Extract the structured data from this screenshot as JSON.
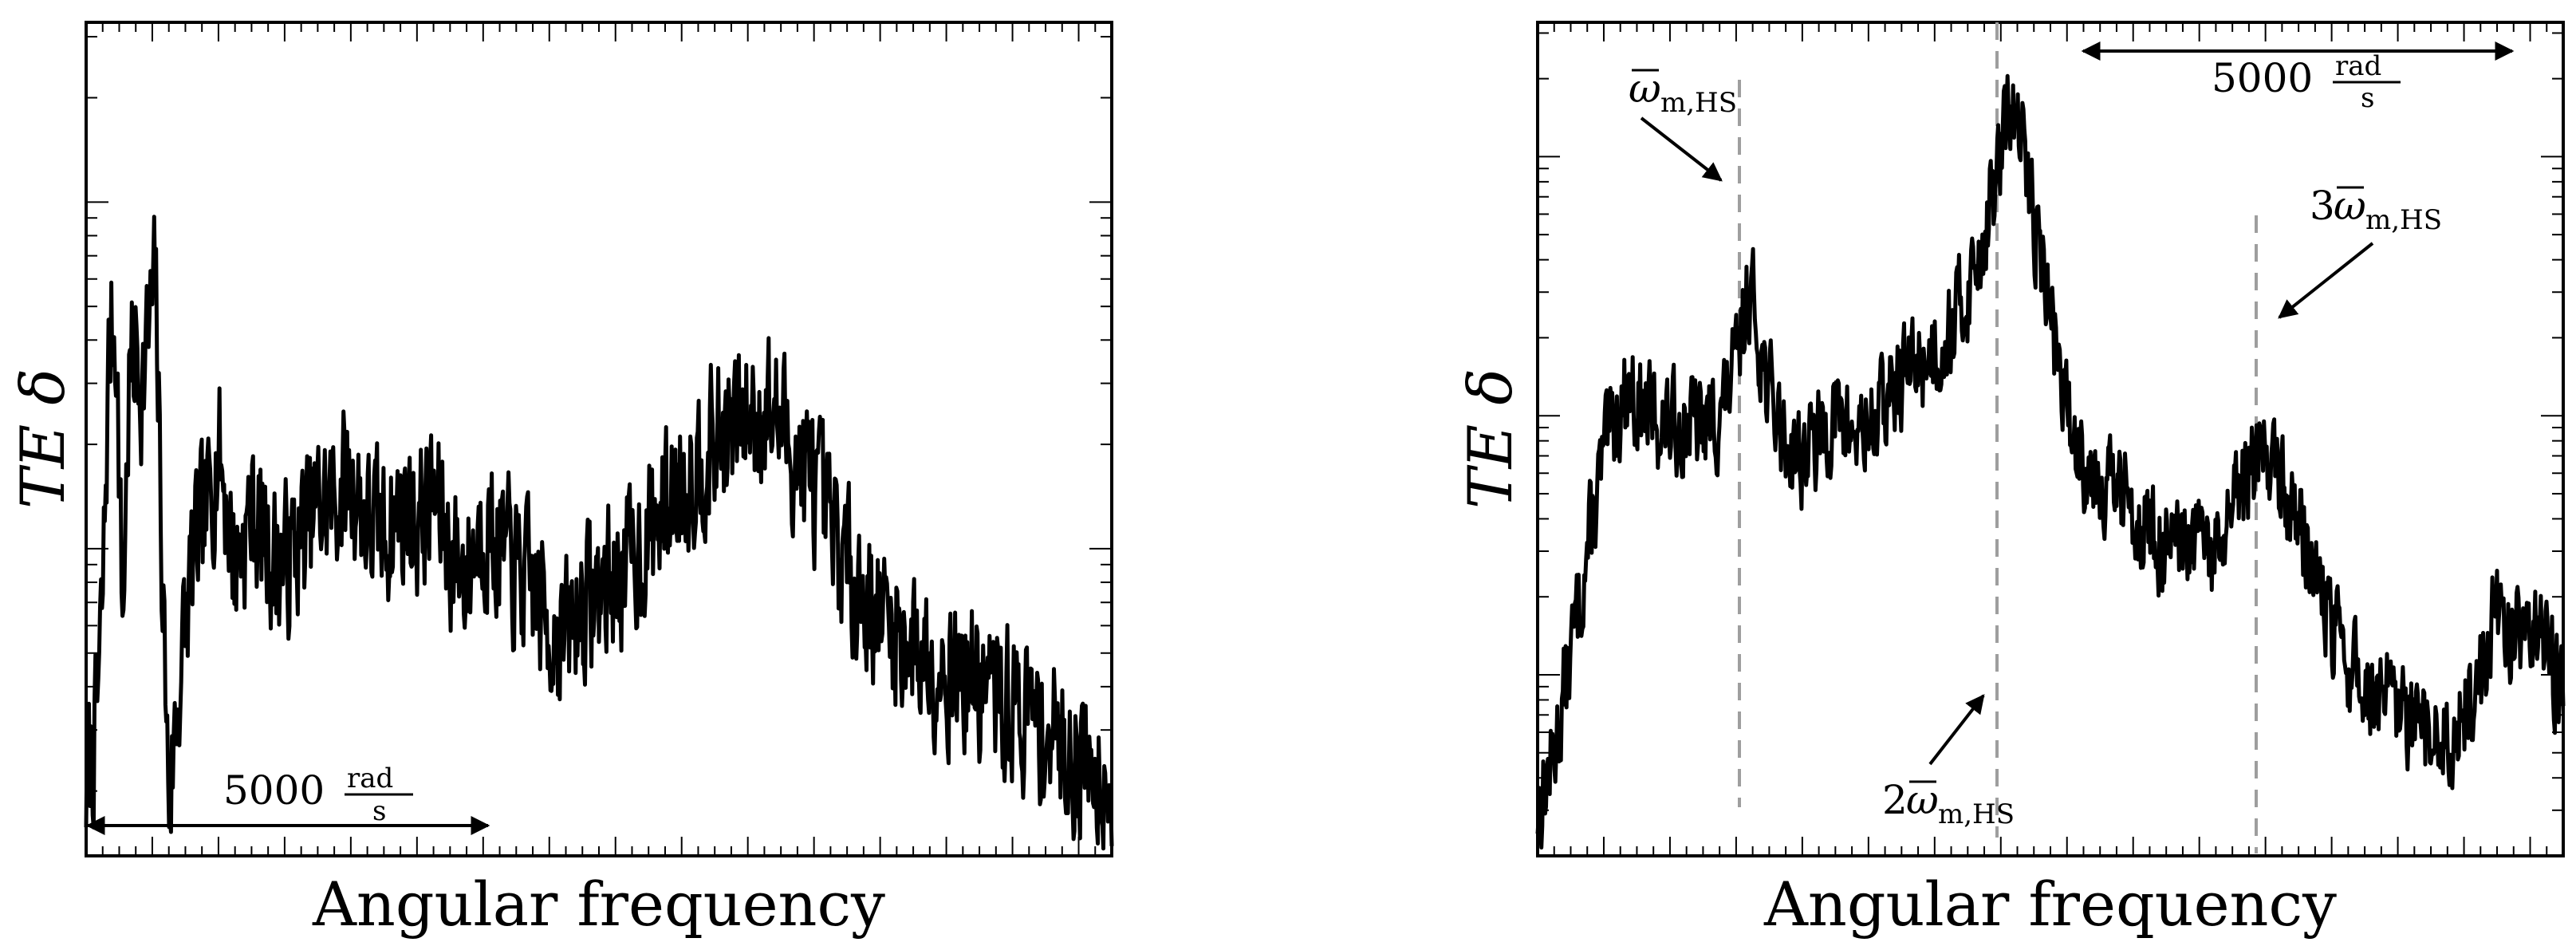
{
  "chart_data": [
    {
      "type": "line",
      "xlabel": "Angular frequency",
      "ylabel": "TE δ",
      "yscale": "log",
      "grid": false,
      "legend": "none",
      "xlim": [
        0,
        31000
      ],
      "ylim": [
        0.013,
        3.3
      ],
      "scale_bar": {
        "value": "5000",
        "unit_num": "rad",
        "unit_den": "s",
        "from": 0,
        "to": 12000,
        "position": "bottom-left"
      },
      "series": [
        {
          "color": "#000000",
          "points": [
            [
              0,
              0.02
            ],
            [
              300,
              0.03
            ],
            [
              500,
              0.07
            ],
            [
              700,
              0.4
            ],
            [
              900,
              0.46
            ],
            [
              1100,
              0.06
            ],
            [
              1300,
              0.3
            ],
            [
              1500,
              0.38
            ],
            [
              1700,
              0.3
            ],
            [
              1900,
              0.42
            ],
            [
              2100,
              0.58
            ],
            [
              2300,
              0.09
            ],
            [
              2500,
              0.018
            ],
            [
              2800,
              0.04
            ],
            [
              3200,
              0.09
            ],
            [
              3600,
              0.12
            ],
            [
              4000,
              0.2
            ],
            [
              4500,
              0.09
            ],
            [
              5000,
              0.13
            ],
            [
              5500,
              0.1
            ],
            [
              6000,
              0.09
            ],
            [
              6500,
              0.11
            ],
            [
              7000,
              0.13
            ],
            [
              7500,
              0.14
            ],
            [
              8000,
              0.16
            ],
            [
              8500,
              0.12
            ],
            [
              9000,
              0.11
            ],
            [
              9500,
              0.13
            ],
            [
              10000,
              0.12
            ],
            [
              10500,
              0.14
            ],
            [
              11000,
              0.1
            ],
            [
              11500,
              0.085
            ],
            [
              12000,
              0.12
            ],
            [
              12500,
              0.1
            ],
            [
              13000,
              0.085
            ],
            [
              13500,
              0.075
            ],
            [
              14000,
              0.06
            ],
            [
              14500,
              0.055
            ],
            [
              15000,
              0.07
            ],
            [
              15500,
              0.075
            ],
            [
              16000,
              0.085
            ],
            [
              16500,
              0.09
            ],
            [
              17000,
              0.11
            ],
            [
              17500,
              0.13
            ],
            [
              18000,
              0.16
            ],
            [
              18500,
              0.18
            ],
            [
              19000,
              0.2
            ],
            [
              19500,
              0.22
            ],
            [
              20000,
              0.24
            ],
            [
              20500,
              0.26
            ],
            [
              21000,
              0.23
            ],
            [
              21500,
              0.18
            ],
            [
              22000,
              0.15
            ],
            [
              22500,
              0.11
            ],
            [
              23000,
              0.09
            ],
            [
              23500,
              0.075
            ],
            [
              24000,
              0.065
            ],
            [
              24500,
              0.058
            ],
            [
              25000,
              0.052
            ],
            [
              25500,
              0.05
            ],
            [
              26000,
              0.046
            ],
            [
              26500,
              0.043
            ],
            [
              27000,
              0.04
            ],
            [
              27500,
              0.037
            ],
            [
              28000,
              0.035
            ],
            [
              28500,
              0.033
            ],
            [
              29000,
              0.03
            ],
            [
              29500,
              0.027
            ],
            [
              30000,
              0.025
            ],
            [
              30500,
              0.024
            ],
            [
              31000,
              0.022
            ]
          ],
          "noise": 0.4
        }
      ]
    },
    {
      "type": "line",
      "xlabel": "Angular frequency",
      "ylabel": "TE δ",
      "yscale": "log",
      "grid": false,
      "legend": "none",
      "xlim": [
        0,
        31000
      ],
      "ylim": [
        0.002,
        3.3
      ],
      "scale_bar": {
        "value": "5000",
        "unit_num": "rad",
        "unit_den": "s",
        "from": 17600,
        "to": 31000,
        "position": "top-right"
      },
      "reference_lines": [
        {
          "x": 6400,
          "label_main": "ω",
          "label_sub": "m,HS",
          "label_prefix": "",
          "overline": true
        },
        {
          "x": 14300,
          "label_main": "ω",
          "label_sub": "m,HS",
          "label_prefix": "2",
          "overline": true
        },
        {
          "x": 22300,
          "label_main": "ω",
          "label_sub": "m,HS",
          "label_prefix": "3",
          "overline": true
        }
      ],
      "series": [
        {
          "color": "#000000",
          "points": [
            [
              0,
              0.003
            ],
            [
              500,
              0.005
            ],
            [
              1000,
              0.012
            ],
            [
              1500,
              0.03
            ],
            [
              2000,
              0.07
            ],
            [
              2500,
              0.11
            ],
            [
              2800,
              0.13
            ],
            [
              3000,
              0.11
            ],
            [
              3500,
              0.1
            ],
            [
              4000,
              0.09
            ],
            [
              4500,
              0.095
            ],
            [
              5000,
              0.09
            ],
            [
              5500,
              0.1
            ],
            [
              6000,
              0.15
            ],
            [
              6400,
              0.32
            ],
            [
              6700,
              0.2
            ],
            [
              7000,
              0.12
            ],
            [
              7500,
              0.08
            ],
            [
              8000,
              0.07
            ],
            [
              8500,
              0.08
            ],
            [
              9000,
              0.1
            ],
            [
              9500,
              0.085
            ],
            [
              10000,
              0.09
            ],
            [
              10500,
              0.11
            ],
            [
              11000,
              0.14
            ],
            [
              11500,
              0.16
            ],
            [
              12000,
              0.18
            ],
            [
              12500,
              0.22
            ],
            [
              13000,
              0.3
            ],
            [
              13500,
              0.5
            ],
            [
              14000,
              1.0
            ],
            [
              14300,
              1.6
            ],
            [
              14700,
              1.0
            ],
            [
              15000,
              0.6
            ],
            [
              15500,
              0.25
            ],
            [
              16000,
              0.1
            ],
            [
              16500,
              0.07
            ],
            [
              17000,
              0.06
            ],
            [
              17500,
              0.05
            ],
            [
              18000,
              0.045
            ],
            [
              18500,
              0.035
            ],
            [
              19000,
              0.03
            ],
            [
              19500,
              0.028
            ],
            [
              20000,
              0.032
            ],
            [
              20500,
              0.028
            ],
            [
              21000,
              0.04
            ],
            [
              21500,
              0.06
            ],
            [
              22000,
              0.08
            ],
            [
              22500,
              0.055
            ],
            [
              23000,
              0.04
            ],
            [
              23500,
              0.025
            ],
            [
              24000,
              0.015
            ],
            [
              24500,
              0.011
            ],
            [
              25000,
              0.009
            ],
            [
              25500,
              0.008
            ],
            [
              26000,
              0.007
            ],
            [
              26500,
              0.006
            ],
            [
              27000,
              0.0055
            ],
            [
              27500,
              0.0055
            ],
            [
              28000,
              0.007
            ],
            [
              28500,
              0.01
            ],
            [
              29000,
              0.018
            ],
            [
              29500,
              0.014
            ],
            [
              30000,
              0.017
            ],
            [
              30500,
              0.012
            ],
            [
              31000,
              0.009
            ]
          ],
          "noise": 0.35
        }
      ]
    }
  ]
}
